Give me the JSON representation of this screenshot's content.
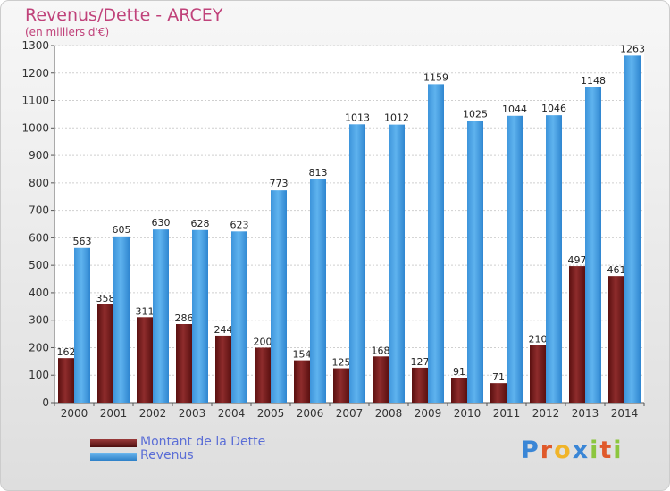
{
  "header": {
    "title": "Revenus/Dette - ARCEY",
    "subtitle": "(en milliers d'€)"
  },
  "legend": {
    "debt_label": "Montant de la Dette",
    "revenue_label": "Revenus"
  },
  "logo": {
    "text": "Proxiti",
    "letters": [
      "P",
      "r",
      "o",
      "x",
      "i",
      "t",
      "i"
    ],
    "colors": [
      "#3a86d6",
      "#e0592a",
      "#f0b429",
      "#3a86d6",
      "#8cc63e",
      "#e0592a",
      "#8cc63e"
    ]
  },
  "colors": {
    "debt": "#7a1f1f",
    "revenue": "#4aa3e6",
    "title": "#c0427a"
  },
  "chart_data": {
    "type": "bar",
    "categories": [
      "2000",
      "2001",
      "2002",
      "2003",
      "2004",
      "2005",
      "2006",
      "2007",
      "2008",
      "2009",
      "2010",
      "2011",
      "2012",
      "2013",
      "2014"
    ],
    "series": [
      {
        "name": "Montant de la Dette",
        "values": [
          162,
          358,
          311,
          286,
          244,
          200,
          154,
          125,
          168,
          127,
          91,
          71,
          210,
          497,
          461
        ]
      },
      {
        "name": "Revenus",
        "values": [
          563,
          605,
          630,
          628,
          623,
          773,
          813,
          1013,
          1012,
          1159,
          1025,
          1044,
          1046,
          1148,
          1263
        ]
      }
    ],
    "title": "Revenus/Dette - ARCEY",
    "subtitle": "(en milliers d'€)",
    "ylim": [
      0,
      1300
    ],
    "yticks": [
      0,
      100,
      200,
      300,
      400,
      500,
      600,
      700,
      800,
      900,
      1000,
      1100,
      1200,
      1300
    ],
    "grid": true,
    "legend_position": "bottom-left"
  }
}
